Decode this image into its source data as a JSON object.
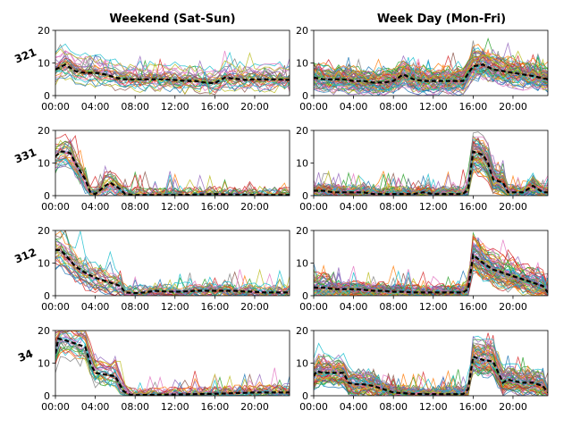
{
  "figure": {
    "columns": [
      {
        "id": "weekend",
        "title": "Weekend (Sat-Sun)"
      },
      {
        "id": "weekday",
        "title": "Week Day (Mon-Fri)"
      }
    ],
    "rows": [
      "321",
      "331",
      "312",
      "34"
    ]
  },
  "axes": {
    "xticks": [
      "00:00",
      "04:00",
      "08:00",
      "12:00",
      "16:00",
      "20:00"
    ],
    "xtick_hours": [
      0,
      4,
      8,
      12,
      16,
      20
    ],
    "xlim": [
      0,
      23.5
    ],
    "yticks": [
      0,
      10,
      20
    ],
    "ylim": [
      0,
      20
    ]
  },
  "palette": [
    "#1f77b4",
    "#ff7f0e",
    "#2ca02c",
    "#d62728",
    "#9467bd",
    "#8c564b",
    "#e377c2",
    "#7f7f7f",
    "#bcbd22",
    "#17becf"
  ],
  "mean_line": {
    "color": "#000000",
    "style": "dashed"
  },
  "chart_data": [
    {
      "type": "line",
      "row_label": "321",
      "column": "Weekend (Sat-Sun)",
      "series_count": 30,
      "mean": {
        "x": [
          0,
          1,
          2,
          3,
          4,
          5,
          6,
          7,
          8,
          9,
          10,
          11,
          12,
          13,
          14,
          15,
          16,
          17,
          18,
          19,
          20,
          21,
          22,
          23.5
        ],
        "y": [
          8,
          9.5,
          7.5,
          7,
          7,
          6.5,
          5.5,
          5,
          5,
          5,
          5,
          5,
          4.8,
          4.5,
          4.5,
          4,
          3.8,
          5.5,
          5.2,
          4.8,
          5,
          5,
          5,
          4.8
        ]
      }
    },
    {
      "type": "line",
      "row_label": "321",
      "column": "Week Day (Mon-Fri)",
      "series_count": 60,
      "mean": {
        "x": [
          0,
          1,
          2,
          3,
          4,
          5,
          6,
          7,
          8,
          9,
          10,
          11,
          12,
          13,
          14,
          15,
          16,
          17,
          18,
          19,
          20,
          21,
          22,
          23.5
        ],
        "y": [
          5.5,
          5,
          5,
          5,
          4.5,
          4.5,
          4,
          4,
          4.5,
          6.5,
          5,
          4.5,
          4.5,
          4.5,
          4.5,
          4.5,
          9,
          9.5,
          8,
          7.5,
          7,
          6.5,
          6,
          5
        ]
      }
    },
    {
      "type": "line",
      "row_label": "331",
      "column": "Weekend (Sat-Sun)",
      "series_count": 30,
      "mean": {
        "x": [
          0,
          0.5,
          1,
          1.5,
          2,
          3,
          3.5,
          4,
          5,
          5.5,
          6,
          6.5,
          7,
          8,
          10,
          12,
          14,
          16,
          18,
          20,
          23.5
        ],
        "y": [
          12,
          13.5,
          13.5,
          13,
          10,
          5,
          1,
          0.5,
          3,
          4,
          3,
          2,
          0.5,
          0.2,
          0.2,
          0.2,
          0.3,
          0.5,
          0.3,
          0.2,
          0.2
        ]
      }
    },
    {
      "type": "line",
      "row_label": "331",
      "column": "Week Day (Mon-Fri)",
      "series_count": 60,
      "mean": {
        "x": [
          0,
          1,
          2,
          3,
          4,
          5,
          6,
          7,
          8,
          9,
          10,
          11,
          12,
          13,
          14,
          15,
          15.5,
          16,
          17,
          17.5,
          18,
          19,
          19.5,
          20,
          21,
          22,
          23,
          23.5
        ],
        "y": [
          1.5,
          1.5,
          1,
          1,
          1,
          1,
          0.5,
          0.5,
          0.5,
          0.5,
          0.5,
          1,
          0.5,
          0.5,
          0.5,
          0.5,
          2,
          13.5,
          12.5,
          10,
          5,
          4,
          1,
          1,
          1,
          3,
          1,
          1
        ]
      }
    },
    {
      "type": "line",
      "row_label": "312",
      "column": "Weekend (Sat-Sun)",
      "series_count": 30,
      "mean": {
        "x": [
          0,
          0.5,
          1,
          2,
          3,
          4,
          5,
          6,
          6.5,
          7,
          8,
          9,
          10,
          11,
          12,
          13,
          14,
          15,
          16,
          17,
          18,
          19,
          20,
          21,
          22,
          23.5
        ],
        "y": [
          14,
          14,
          12.5,
          9,
          7,
          5.5,
          4.5,
          3.5,
          3,
          1,
          0.8,
          1,
          1.5,
          1.3,
          1.2,
          1.3,
          1.5,
          1.5,
          1.5,
          1.5,
          1.5,
          1.3,
          1.2,
          1,
          1,
          1
        ]
      }
    },
    {
      "type": "line",
      "row_label": "312",
      "column": "Week Day (Mon-Fri)",
      "series_count": 60,
      "mean": {
        "x": [
          0,
          1,
          2,
          3,
          4,
          5,
          6,
          7,
          8,
          9,
          10,
          11,
          12,
          13,
          14,
          15,
          15.5,
          16,
          17,
          18,
          19,
          20,
          21,
          22,
          23,
          23.5
        ],
        "y": [
          2.5,
          2.5,
          2,
          2,
          2,
          1.8,
          1.5,
          1.5,
          1.2,
          1.2,
          1,
          1,
          1,
          1,
          1,
          1,
          2,
          12.5,
          10,
          8,
          7,
          6,
          5,
          4,
          3,
          1
        ]
      }
    },
    {
      "type": "line",
      "row_label": "34",
      "column": "Weekend (Sat-Sun)",
      "series_count": 30,
      "mean": {
        "x": [
          0,
          0.3,
          1,
          2,
          3,
          3.5,
          4,
          5,
          6,
          6.8,
          7.5,
          8,
          10,
          12,
          14,
          16,
          18,
          20,
          22,
          23.5
        ],
        "y": [
          13,
          17.5,
          17,
          16,
          15,
          10,
          7,
          6.5,
          6,
          1.5,
          0.3,
          0.2,
          0.3,
          0.4,
          0.5,
          0.6,
          0.8,
          1,
          1,
          1
        ]
      }
    },
    {
      "type": "line",
      "row_label": "34",
      "column": "Week Day (Mon-Fri)",
      "series_count": 60,
      "mean": {
        "x": [
          0,
          0.3,
          1,
          2,
          3,
          3.5,
          4,
          5,
          6,
          7,
          8,
          9,
          10,
          11,
          12,
          13,
          14,
          15,
          15.5,
          16,
          17,
          18,
          19,
          19.5,
          20,
          21,
          22,
          23,
          23.5
        ],
        "y": [
          6,
          7.5,
          7,
          7,
          7,
          4,
          3.5,
          3.5,
          3,
          2,
          1,
          0.8,
          0.6,
          0.5,
          0.5,
          0.5,
          0.5,
          0.5,
          2,
          12,
          11,
          10.5,
          4,
          5,
          4.5,
          4,
          4,
          3,
          1
        ]
      }
    }
  ]
}
